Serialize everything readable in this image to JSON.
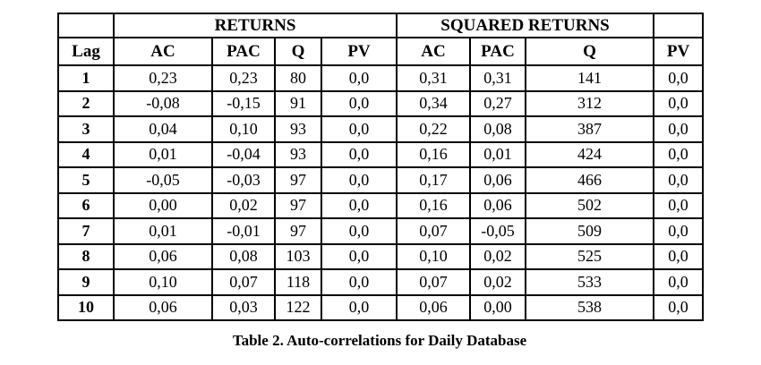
{
  "page": {
    "background": "#ffffff",
    "text_color": "#000000",
    "border_color": "#000000"
  },
  "table": {
    "caption": "Table 2. Auto-correlations for Daily Database",
    "group_headers": {
      "left": "RETURNS",
      "right": "SQUARED RETURNS"
    },
    "lag_header": "Lag",
    "columns_left": [
      "AC",
      "PAC",
      "Q",
      "PV"
    ],
    "columns_right": [
      "AC",
      "PAC",
      "Q",
      "PV"
    ],
    "rows": [
      [
        "1",
        "0,23",
        "0,23",
        "80",
        "0,0",
        "0,31",
        "0,31",
        "141",
        "0,0"
      ],
      [
        "2",
        "-0,08",
        "-0,15",
        "91",
        "0,0",
        "0,34",
        "0,27",
        "312",
        "0,0"
      ],
      [
        "3",
        "0,04",
        "0,10",
        "93",
        "0,0",
        "0,22",
        "0,08",
        "387",
        "0,0"
      ],
      [
        "4",
        "0,01",
        "-0,04",
        "93",
        "0,0",
        "0,16",
        "0,01",
        "424",
        "0,0"
      ],
      [
        "5",
        "-0,05",
        "-0,03",
        "97",
        "0,0",
        "0,17",
        "0,06",
        "466",
        "0,0"
      ],
      [
        "6",
        "0,00",
        "0,02",
        "97",
        "0,0",
        "0,16",
        "0,06",
        "502",
        "0,0"
      ],
      [
        "7",
        "0,01",
        "-0,01",
        "97",
        "0,0",
        "0,07",
        "-0,05",
        "509",
        "0,0"
      ],
      [
        "8",
        "0,06",
        "0,08",
        "103",
        "0,0",
        "0,10",
        "0,02",
        "525",
        "0,0"
      ],
      [
        "9",
        "0,10",
        "0,07",
        "118",
        "0,0",
        "0,07",
        "0,02",
        "533",
        "0,0"
      ],
      [
        "10",
        "0,06",
        "0,03",
        "122",
        "0,0",
        "0,06",
        "0,00",
        "538",
        "0,0"
      ]
    ]
  }
}
